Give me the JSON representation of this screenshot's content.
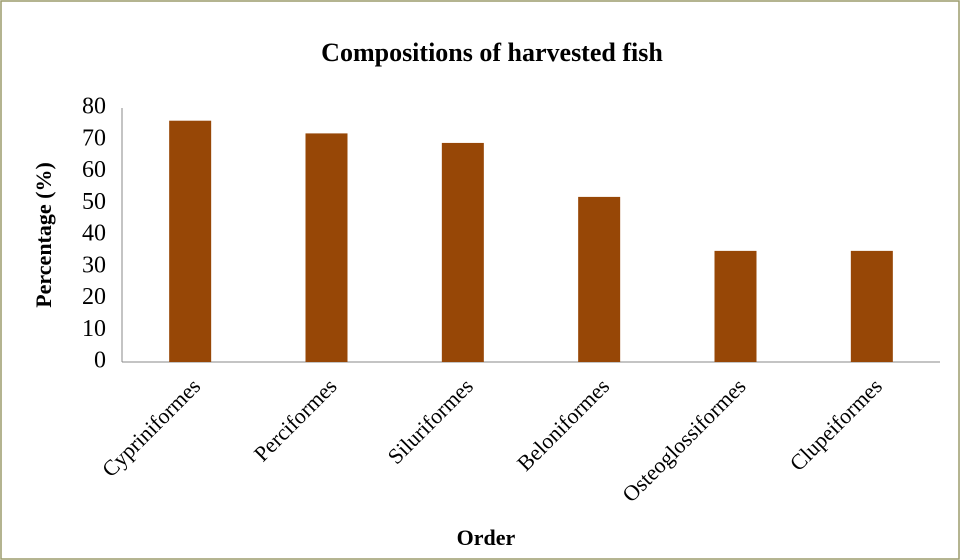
{
  "chart_data": {
    "type": "bar",
    "title": "Compositions of harvested fish",
    "x_label": "Order",
    "y_label": "Percentage (%)",
    "categories": [
      "Cypriniformes",
      "Perciformes",
      "Siluriformes",
      "Beloniformes",
      "Osteoglossiformes",
      "Clupeiformes"
    ],
    "values": [
      76,
      72,
      69,
      52,
      35,
      35
    ],
    "color": "#974706",
    "ylim": [
      0,
      80
    ],
    "yticks": [
      0,
      10,
      20,
      30,
      40,
      50,
      60,
      70,
      80
    ],
    "grid": false
  }
}
